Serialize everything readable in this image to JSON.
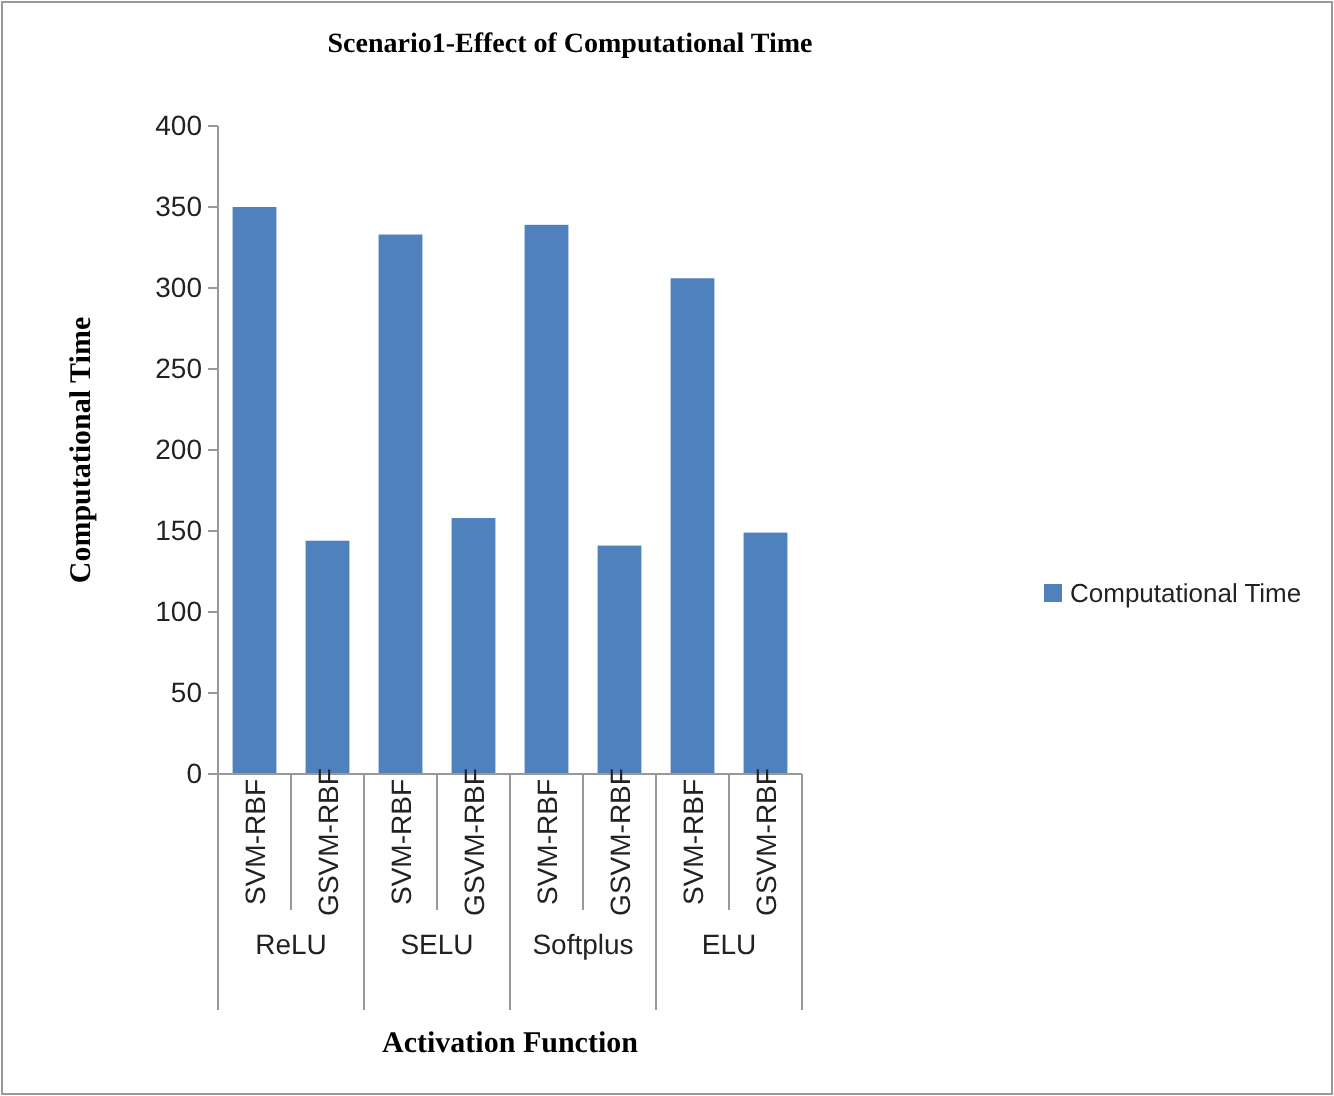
{
  "chart_data": {
    "type": "bar",
    "title": "Scenario1-Effect of Computational Time",
    "xlabel": "Activation Function",
    "ylabel": "Computational Time",
    "categories": [
      "SVM-RBF",
      "GSVM-RBF",
      "SVM-RBF",
      "GSVM-RBF",
      "SVM-RBF",
      "GSVM-RBF",
      "SVM-RBF",
      "GSVM-RBF"
    ],
    "series": [
      {
        "name": "Computational Time",
        "color": "#4f81bd",
        "values": [
          350,
          144,
          333,
          158,
          339,
          141,
          306,
          149
        ]
      }
    ],
    "annotations": [
      "ReLU",
      "SELU",
      "Softplus",
      "ELU"
    ],
    "ylim": [
      0,
      400
    ],
    "yticks": [
      0,
      50,
      100,
      150,
      200,
      250,
      300,
      350,
      400
    ],
    "legend": "right"
  }
}
